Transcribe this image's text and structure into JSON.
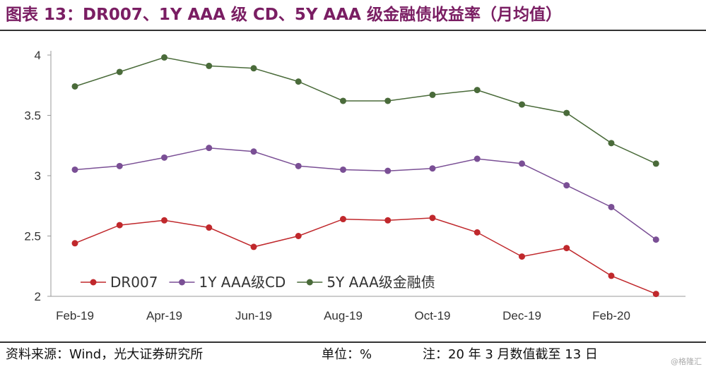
{
  "header": {
    "title": "图表 13：DR007、1Y AAA 级 CD、5Y AAA 级金融债收益率（月均值）"
  },
  "footer": {
    "source": "资料来源：Wind，光大证券研究所",
    "unit": "单位：%",
    "note": "注：20 年 3 月数值截至 13 日"
  },
  "watermark": "@格隆汇",
  "chart_data": {
    "type": "line",
    "categories": [
      "2019-02",
      "2019-03",
      "2019-04",
      "2019-05",
      "2019-06",
      "2019-07",
      "2019-08",
      "2019-09",
      "2019-10",
      "2019-11",
      "2019-12",
      "2020-01",
      "2020-02",
      "2020-03"
    ],
    "x_tick_labels": [
      {
        "index": 0,
        "label": "Feb-19"
      },
      {
        "index": 2,
        "label": "Apr-19"
      },
      {
        "index": 4,
        "label": "Jun-19"
      },
      {
        "index": 6,
        "label": "Aug-19"
      },
      {
        "index": 8,
        "label": "Oct-19"
      },
      {
        "index": 10,
        "label": "Dec-19"
      },
      {
        "index": 12,
        "label": "Feb-20"
      }
    ],
    "ylim": [
      2,
      4
    ],
    "y_ticks": [
      "2",
      "2.5",
      "3",
      "3.5",
      "4"
    ],
    "grid": false,
    "legend_position": "bottom-left inside",
    "series": [
      {
        "name": "DR007",
        "color": "#c0282c",
        "values": [
          2.44,
          2.59,
          2.63,
          2.57,
          2.41,
          2.5,
          2.64,
          2.63,
          2.65,
          2.53,
          2.33,
          2.4,
          2.17,
          2.02
        ]
      },
      {
        "name": "1Y AAA级CD",
        "color": "#7a4f95",
        "values": [
          3.05,
          3.08,
          3.15,
          3.23,
          3.2,
          3.08,
          3.05,
          3.04,
          3.06,
          3.14,
          3.1,
          2.92,
          2.74,
          2.47
        ]
      },
      {
        "name": "5Y AAA级金融债",
        "color": "#4a6b3a",
        "values": [
          3.74,
          3.86,
          3.98,
          3.91,
          3.89,
          3.78,
          3.62,
          3.62,
          3.67,
          3.71,
          3.59,
          3.52,
          3.27,
          3.1
        ]
      }
    ]
  }
}
